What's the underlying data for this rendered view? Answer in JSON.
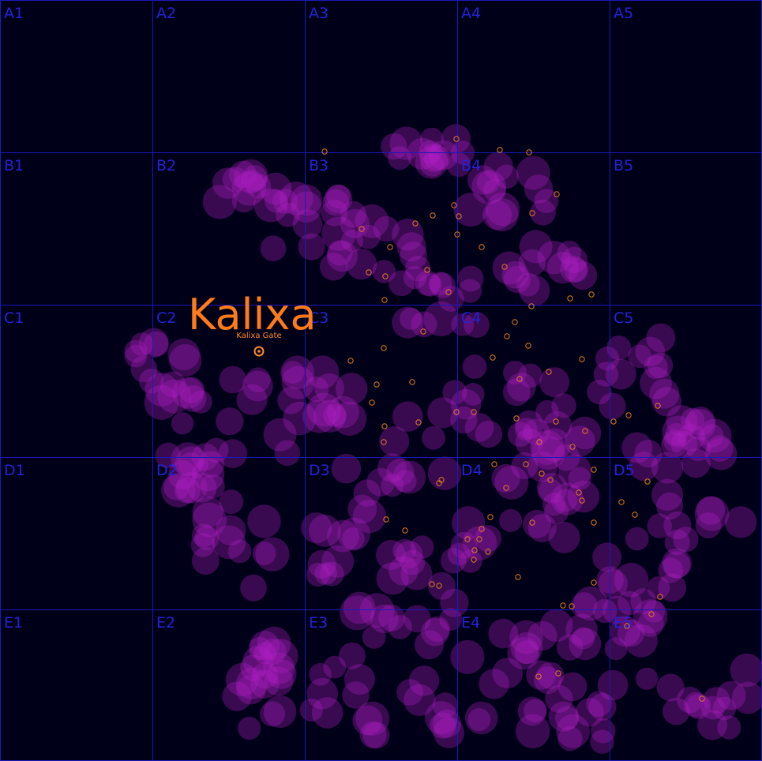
{
  "region": {
    "name": "Kalixa",
    "gate_label": "Kalixa Gate",
    "gate_icon": "gate-icon"
  },
  "grid": {
    "rows": [
      "A",
      "B",
      "C",
      "D",
      "E"
    ],
    "cols": [
      "1",
      "2",
      "3",
      "4",
      "5"
    ],
    "cells": [
      [
        "A1",
        "A2",
        "A3",
        "A4",
        "A5"
      ],
      [
        "B1",
        "B2",
        "B3",
        "B4",
        "B5"
      ],
      [
        "C1",
        "C2",
        "C3",
        "C4",
        "C5"
      ],
      [
        "D1",
        "D2",
        "D3",
        "D4",
        "D5"
      ],
      [
        "E1",
        "E2",
        "E3",
        "E4",
        "E5"
      ]
    ]
  },
  "colors": {
    "background": "#000018",
    "grid": "#1a1ab8",
    "cell_label": "#2323d8",
    "region_label": "#ff7a1a",
    "nebula": "#b020c8",
    "system_marker": "#e07a20"
  }
}
